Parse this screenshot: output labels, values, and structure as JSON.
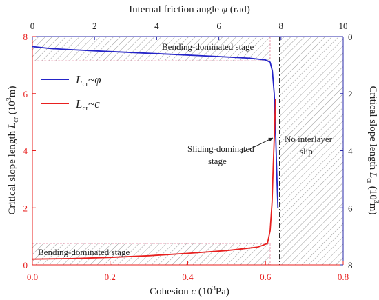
{
  "chart_data": {
    "type": "line",
    "axes": {
      "bottom": {
        "label": "Cohesion c (10³Pa)",
        "label_parts": [
          "Cohesion ",
          "c",
          " (10",
          "3",
          "Pa)"
        ],
        "ticks": [
          "0.0",
          "0.2",
          "0.4",
          "0.6",
          "0.8"
        ],
        "range": [
          0,
          0.8
        ],
        "color": "#e8201f"
      },
      "top": {
        "label": "Internal friction angle φ (rad)",
        "label_parts": [
          "Internal friction angle ",
          "φ",
          " (rad)"
        ],
        "ticks": [
          "0",
          "2",
          "4",
          "6",
          "8",
          "10"
        ],
        "range": [
          0,
          10
        ],
        "color": "#222222"
      },
      "left": {
        "label": "Critical slope length Lcr (10³m)",
        "label_parts": [
          "Critical slope length ",
          "L",
          "cr",
          " (10",
          "3",
          "m)"
        ],
        "ticks": [
          "0",
          "2",
          "4",
          "6",
          "8"
        ],
        "range": [
          0,
          8
        ],
        "color": "#e8201f"
      },
      "right": {
        "label": "Critical slope length Lcr (10³m)",
        "label_parts": [
          "Critical slope length ",
          "L",
          "cr",
          " (10",
          "3",
          "m)"
        ],
        "ticks": [
          "0",
          "2",
          "4",
          "6",
          "8"
        ],
        "range": [
          0,
          8
        ],
        "reversed": true,
        "color": "#2a2aa8"
      }
    },
    "series": [
      {
        "name": "Lcr~φ",
        "legend_parts": [
          "L",
          "cr",
          "~",
          "φ"
        ],
        "color": "#2424c8",
        "x_axis": "top",
        "y_axis": "right",
        "x": [
          0,
          0.6,
          2,
          4,
          6,
          7,
          7.5,
          7.65,
          7.72,
          7.78,
          7.83,
          7.87,
          7.9
        ],
        "y": [
          0.35,
          0.42,
          0.5,
          0.6,
          0.7,
          0.76,
          0.82,
          0.9,
          1.2,
          2,
          3.5,
          5,
          6
        ]
      },
      {
        "name": "Lcr~c",
        "legend_parts": [
          "L",
          "cr",
          "~",
          "c"
        ],
        "color": "#e8201f",
        "x_axis": "bottom",
        "y_axis": "left",
        "x": [
          0,
          0.1,
          0.2,
          0.3,
          0.4,
          0.5,
          0.58,
          0.605,
          0.612,
          0.617,
          0.62,
          0.623,
          0.625,
          0.626
        ],
        "y": [
          0.2,
          0.22,
          0.26,
          0.32,
          0.4,
          0.5,
          0.62,
          0.75,
          1.2,
          2.2,
          3.5,
          4.6,
          5.4,
          5.8
        ]
      }
    ],
    "regions": [
      {
        "name": "Bending-dominated stage",
        "position": "top",
        "x_range": [
          0,
          0.612
        ],
        "right_y_range": [
          0,
          0.85
        ]
      },
      {
        "name": "Bending-dominated stage",
        "position": "bottom",
        "x_range": [
          0,
          0.612
        ],
        "y_range": [
          0,
          0.75
        ]
      },
      {
        "name": "No interlayer slip",
        "position": "right",
        "x_range": [
          0.636,
          0.8
        ],
        "y_range": [
          0,
          8
        ]
      }
    ],
    "boundary_line": {
      "x": 0.636,
      "style": "dash-dot"
    },
    "annotations": {
      "bending_top": "Bending-dominated stage",
      "bending_bottom": "Bending-dominated stage",
      "sliding": [
        "Sliding-dominated",
        "stage"
      ],
      "no_slip": [
        "No interlayer",
        "slip"
      ]
    },
    "legend_position": "top-left",
    "grid": false,
    "colors": {
      "red_axis": "#e8201f",
      "blue_axis": "#2a2aa8",
      "hatch": "#9a9a9a",
      "region_border": "#e89bb0"
    }
  }
}
